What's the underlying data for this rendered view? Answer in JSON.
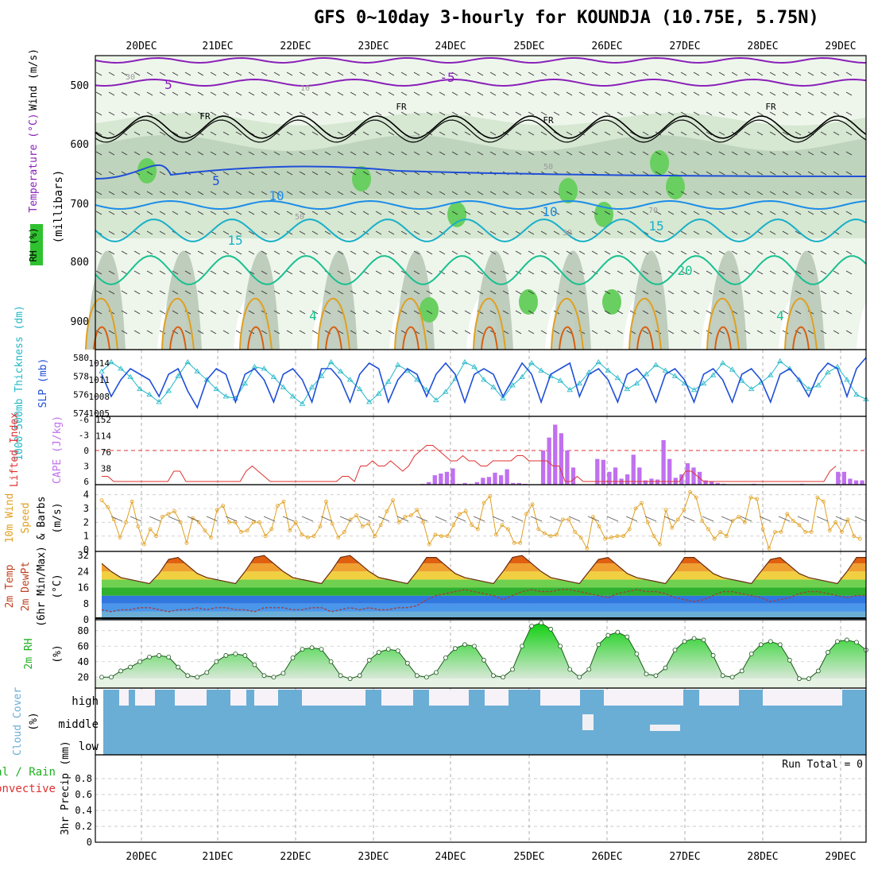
{
  "title": "GFS 0~10day 3-hourly for KOUNDJA (10.75E, 5.75N)",
  "dates": [
    "20DEC",
    "21DEC",
    "22DEC",
    "23DEC",
    "24DEC",
    "25DEC",
    "26DEC",
    "27DEC",
    "28DEC",
    "29DEC"
  ],
  "colors": {
    "purple": "#8a1fb8",
    "blue": "#1f4fd8",
    "cyan": "#21b8c8",
    "teal": "#18c090",
    "orange": "#e0a020",
    "dkorange": "#d86010",
    "red": "#e03030",
    "cape": "#c070f0",
    "green": "#20c020",
    "cloud": "#6aaed6"
  },
  "panels": {
    "upper": {
      "y_label": "(millibars)",
      "legend_wind": "Wind (m/s)",
      "legend_temp": "Temperature (°C)",
      "legend_rh": "RH (%)",
      "ticks": [
        "500",
        "600",
        "700",
        "800",
        "900"
      ],
      "contour_labels": [
        "5",
        "-5",
        "FR",
        "FR",
        "FR",
        "FR",
        "5",
        "10",
        "10",
        "15",
        "15",
        "20",
        "4",
        "4",
        "30",
        "10",
        "50",
        "50",
        "50",
        "70"
      ]
    },
    "thickness": {
      "label_left": "1000-500mb Thickness (dm)",
      "label_right": "SLP (mb)",
      "left_ticks": [
        "580",
        "578",
        "576",
        "574"
      ],
      "right_ticks": [
        "1014",
        "1011",
        "1008",
        "1005"
      ]
    },
    "cape": {
      "label_left": "Lifted Index",
      "label_right": "CAPE (J/kg)",
      "left_ticks": [
        "-6",
        "-3",
        "0",
        "3",
        "6"
      ],
      "right_ticks": [
        "152",
        "114",
        "76",
        "38"
      ]
    },
    "wind10": {
      "label1": "10m Wind",
      "label2": "Speed",
      "label3": "& Barbs",
      "unit": "(m/s)",
      "ticks": [
        "4",
        "3",
        "2",
        "1",
        "0"
      ]
    },
    "temp2m": {
      "label1": "2m Temp",
      "label2": "2m DewPt",
      "label3": "(6hr Min/Max)",
      "unit": "(°C)",
      "ticks": [
        "32",
        "24",
        "16",
        "8",
        "0"
      ]
    },
    "rh2m": {
      "label": "2m RH",
      "unit": "(%)",
      "ticks": [
        "80",
        "60",
        "40",
        "20"
      ]
    },
    "cloud": {
      "label": "Cloud Cover",
      "unit": "(%)",
      "levels": [
        "high",
        "middle",
        "low"
      ]
    },
    "precip": {
      "label1": "Total / Rain",
      "label2": "Convective",
      "label3": "3hr Precip",
      "unit": "(mm)",
      "ticks": [
        "0.8",
        "0.6",
        "0.4",
        "0.2",
        "0"
      ],
      "run_total": "Run Total = 0"
    }
  },
  "chart_data": [
    {
      "type": "line",
      "title": "1000-500mb Thickness (dm) / SLP (mb)",
      "series": [
        {
          "name": "SLP (mb)",
          "values": [
            1012,
            1008,
            1011,
            1013,
            1012,
            1011,
            1008,
            1012,
            1013,
            1009,
            1006,
            1011,
            1013,
            1012,
            1007,
            1012,
            1013,
            1011,
            1007,
            1012,
            1013,
            1011,
            1007,
            1013,
            1013,
            1011,
            1007,
            1012,
            1014,
            1013,
            1007,
            1011,
            1013,
            1012,
            1008,
            1012,
            1014,
            1012,
            1007,
            1012,
            1013,
            1012,
            1008,
            1011,
            1014,
            1012,
            1007,
            1012,
            1013,
            1014,
            1008,
            1012,
            1013,
            1011,
            1007,
            1012,
            1013,
            1011,
            1007,
            1012,
            1013,
            1011,
            1007,
            1012,
            1013,
            1011,
            1007,
            1012,
            1013,
            1011,
            1007,
            1012,
            1013,
            1011,
            1008,
            1012,
            1014,
            1013,
            1008,
            1013,
            1015
          ]
        },
        {
          "name": "1000-500mb Thickness (dm)",
          "values": [
            578.5,
            579.5,
            578.8,
            577.9,
            576.6,
            576.0,
            575.2,
            576.4,
            578.0,
            579.5,
            578.5,
            577.6,
            576.6,
            575.8,
            575.6,
            577.2,
            579.0,
            578.8,
            577.9,
            576.8,
            575.8,
            575.0,
            576.8,
            578.0,
            579.5,
            578.5,
            577.6,
            576.6,
            575.2,
            576.1,
            577.4,
            579.2,
            578.6,
            577.6,
            576.5,
            575.4,
            576.3,
            577.7,
            579.5,
            579.0,
            577.6,
            576.8,
            575.6,
            577.0,
            577.9,
            579.4,
            578.6,
            578.0,
            577.5,
            576.5,
            577.2,
            578.4,
            579.5,
            578.6,
            577.8,
            576.6,
            577.2,
            578.2,
            579.2,
            578.6,
            578.0,
            577.2,
            576.5,
            577.2,
            578.1,
            579.4,
            578.7,
            577.5,
            576.6,
            577.3,
            578.1,
            579.6,
            578.8,
            577.6,
            576.6,
            577.0,
            578.4,
            579.0,
            577.6,
            576.0,
            575.5
          ]
        }
      ],
      "ylim_left": [
        574,
        580
      ],
      "ylim_right": [
        1005,
        1015
      ]
    },
    {
      "type": "bar",
      "title": "Lifted Index / CAPE (J/kg)",
      "series": [
        {
          "name": "CAPE (J/kg)",
          "values": [
            0,
            0,
            0,
            0,
            0,
            0,
            0,
            0,
            0,
            0,
            0,
            0,
            0,
            0,
            0,
            0,
            0,
            0,
            0,
            0,
            0,
            0,
            0,
            0,
            0,
            0,
            0,
            0,
            0,
            0,
            0,
            0,
            0,
            0,
            0,
            0,
            0,
            0,
            0,
            0,
            0,
            0,
            0,
            0,
            0,
            0,
            0,
            0,
            0,
            0,
            0,
            0,
            0,
            2,
            6,
            22,
            26,
            30,
            38,
            2,
            4,
            2,
            6,
            16,
            18,
            28,
            22,
            36,
            4,
            4,
            2,
            0,
            0,
            80,
            110,
            140,
            120,
            80,
            40,
            0,
            0,
            0,
            60,
            58,
            30,
            40,
            14,
            24,
            70,
            40,
            10,
            14,
            12,
            104,
            60,
            16,
            24,
            50,
            40,
            30,
            10,
            8,
            4,
            2,
            0,
            0,
            0,
            0,
            2,
            0,
            0,
            0,
            0,
            0,
            0,
            0,
            2,
            0,
            0,
            0,
            0,
            0,
            30,
            30,
            14,
            10,
            10
          ]
        },
        {
          "name": "Lifted Index",
          "values": [
            5,
            5,
            6,
            6,
            6,
            6,
            6,
            6,
            6,
            6,
            6,
            6,
            4,
            4,
            6,
            6,
            6,
            6,
            6,
            6,
            6,
            6,
            6,
            6,
            4,
            3,
            4,
            5,
            6,
            6,
            6,
            6,
            6,
            6,
            6,
            6,
            6,
            6,
            6,
            6,
            5,
            5,
            6,
            3,
            3,
            2,
            3,
            3,
            2,
            3,
            4,
            3,
            1,
            0,
            -1,
            -1,
            0,
            1,
            2,
            2,
            1,
            2,
            2,
            3,
            3,
            2,
            2,
            2,
            2,
            1,
            1,
            2,
            2,
            2,
            2,
            3,
            3,
            6,
            6,
            5,
            6,
            6,
            6,
            6,
            6,
            6,
            6,
            6,
            6,
            6,
            6,
            6,
            6,
            6,
            6,
            6,
            6,
            4,
            4,
            5,
            6,
            6,
            6,
            6,
            6,
            6,
            6,
            6,
            6,
            6,
            6,
            6,
            6,
            6,
            6,
            6,
            6,
            6,
            6,
            6,
            6,
            4,
            3
          ]
        }
      ],
      "ylim_left": [
        6,
        -6
      ],
      "ylim_right": [
        0,
        152
      ]
    },
    {
      "type": "line",
      "title": "10m Wind Speed (m/s)",
      "series": [
        {
          "name": "10m Wind Speed",
          "values": [
            3.6,
            3.1,
            2.2,
            0.9,
            2.0,
            3.5,
            1.7,
            0.4,
            1.5,
            1.0,
            2.4,
            2.6,
            2.8,
            2.0,
            0.5,
            2.3,
            2.0,
            1.4,
            0.9,
            2.9,
            3.2,
            2.0,
            2.0,
            1.3,
            1.4,
            2.0,
            2.0,
            1.0,
            1.5,
            3.2,
            3.5,
            1.4,
            2.0,
            1.1,
            0.9,
            1.0,
            1.7,
            3.5,
            1.9,
            0.9,
            1.3,
            2.2,
            2.5,
            1.7,
            1.9,
            1.0,
            1.8,
            2.8,
            3.6,
            2.0,
            2.4,
            2.5,
            2.9,
            2.0,
            0.4,
            1.1,
            1.0,
            1.0,
            1.8,
            2.6,
            2.8,
            1.8,
            1.5,
            3.4,
            3.9,
            1.1,
            1.8,
            1.5,
            0.5,
            0.5,
            2.6,
            3.3,
            1.5,
            1.2,
            1.0,
            1.1,
            2.2,
            2.2,
            1.3,
            0.9,
            0.1,
            2.4,
            1.7,
            0.8,
            0.9,
            1.0,
            1.0,
            1.5,
            3.0,
            3.4,
            2.0,
            1.0,
            0.4,
            2.9,
            1.6,
            2.2,
            2.9,
            4.2,
            3.8,
            2.1,
            1.5,
            0.8,
            1.3,
            1.0,
            2.1,
            2.4,
            2.0,
            3.8,
            3.7,
            1.5,
            0.1,
            1.3,
            1.3,
            2.6,
            2.1,
            1.8,
            1.3,
            1.3,
            3.8,
            3.5,
            1.4,
            2.0,
            1.3,
            2.2,
            1.0,
            0.8
          ]
        }
      ],
      "ylim": [
        0,
        4.5
      ]
    },
    {
      "type": "area",
      "title": "2m Temp / 2m DewPt (°C)",
      "series": [
        {
          "name": "2m Temp",
          "values": [
            28,
            24,
            21,
            20,
            19,
            18,
            23,
            30,
            31,
            27,
            23,
            21,
            20,
            19,
            18,
            24,
            31,
            32,
            28,
            24,
            21,
            20,
            19,
            18,
            24,
            31,
            32,
            28,
            24,
            21,
            20,
            19,
            18,
            24,
            31,
            31,
            27,
            23,
            21,
            20,
            19,
            18,
            24,
            31,
            32,
            28,
            24,
            21,
            20,
            19,
            18,
            24,
            30,
            31,
            27,
            23,
            21,
            20,
            19,
            18,
            24,
            31,
            31,
            27,
            23,
            21,
            20,
            19,
            18,
            24,
            30,
            31,
            27,
            23,
            21,
            20,
            19,
            18,
            24,
            31,
            31
          ]
        },
        {
          "name": "2m DewPt",
          "values": [
            5,
            4,
            5,
            5,
            6,
            6,
            5,
            4,
            5,
            5,
            6,
            5,
            6,
            6,
            5,
            5,
            4,
            6,
            6,
            6,
            5,
            5,
            6,
            6,
            4,
            5,
            6,
            5,
            6,
            5,
            5,
            6,
            6,
            7,
            10,
            12,
            13,
            14,
            15,
            14,
            13,
            12,
            10,
            12,
            14,
            15,
            14,
            14,
            15,
            15,
            14,
            13,
            12,
            11,
            13,
            14,
            15,
            14,
            14,
            13,
            11,
            10,
            9,
            10,
            12,
            14,
            14,
            13,
            12,
            11,
            9,
            10,
            11,
            13,
            14,
            14,
            13,
            12,
            11,
            12,
            12
          ]
        }
      ],
      "ylim": [
        0,
        34
      ]
    },
    {
      "type": "area",
      "title": "2m RH (%)",
      "series": [
        {
          "name": "2m RH",
          "values": [
            20,
            20,
            28,
            33,
            40,
            46,
            48,
            46,
            33,
            22,
            20,
            26,
            40,
            48,
            50,
            48,
            36,
            22,
            20,
            25,
            45,
            56,
            58,
            56,
            40,
            22,
            18,
            22,
            42,
            52,
            56,
            54,
            38,
            22,
            20,
            26,
            45,
            57,
            62,
            60,
            42,
            22,
            20,
            30,
            60,
            86,
            90,
            82,
            60,
            30,
            20,
            30,
            62,
            74,
            78,
            72,
            50,
            24,
            22,
            32,
            55,
            66,
            70,
            68,
            48,
            22,
            20,
            28,
            50,
            62,
            66,
            62,
            42,
            18,
            18,
            28,
            52,
            66,
            68,
            65,
            55
          ]
        }
      ],
      "ylim": [
        10,
        90
      ]
    },
    {
      "type": "bar",
      "title": "3hr Precip (mm)",
      "series": [
        {
          "name": "3hr Precip",
          "values": []
        }
      ],
      "ylim": [
        0,
        1.0
      ]
    }
  ]
}
